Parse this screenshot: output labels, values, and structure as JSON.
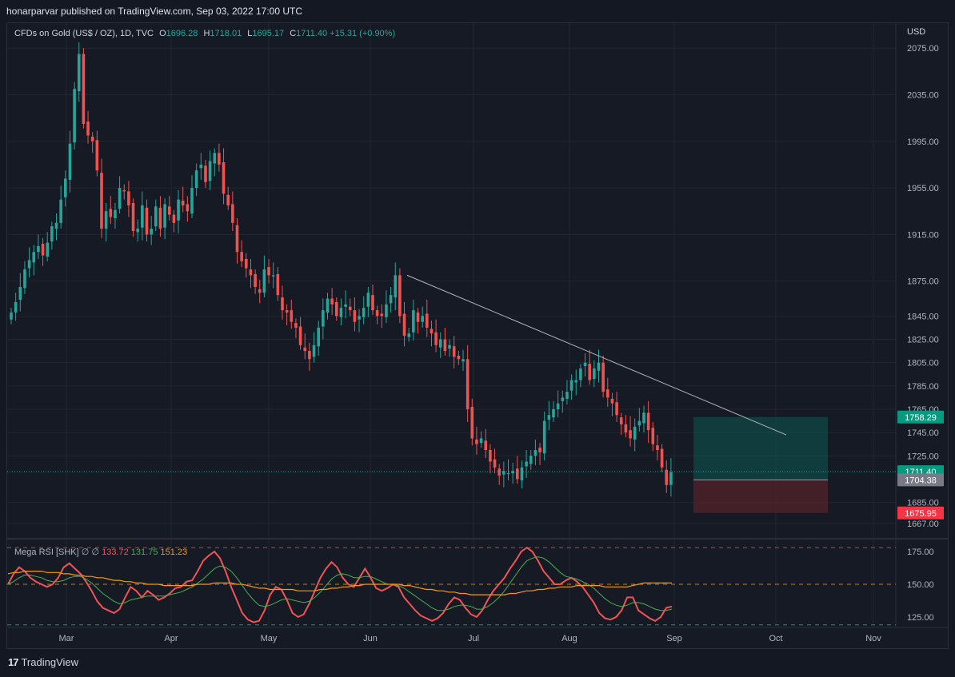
{
  "header": {
    "published": "honarparvar published on TradingView.com, Sep 03, 2022 17:00 UTC"
  },
  "symbol": {
    "name": "CFDs on Gold (US$ / OZ), 1D, TVC",
    "o_label": "O",
    "o": "1696.28",
    "h_label": "H",
    "h": "1718.01",
    "l_label": "L",
    "l": "1695.17",
    "c_label": "C",
    "c": "1711.40",
    "change": "+15.31 (+0.90%)"
  },
  "currency": "USD",
  "rsi_legend": {
    "name": "Mega RSI [SHK]",
    "v1": "133.72",
    "v2": "131.75",
    "v3": "151.23"
  },
  "footer": {
    "brand": "TradingView",
    "logo": "17"
  },
  "colors": {
    "up": "#26a69a",
    "down": "#ef5350",
    "rsi": "#f05454",
    "rsi_signal": "#4caf50",
    "rsi_ma": "#ff9800"
  },
  "chart_data": [
    {
      "type": "candlestick",
      "x_tick_labels": [
        "Mar",
        "Apr",
        "May",
        "Jun",
        "Jul",
        "Aug",
        "Sep",
        "Oct",
        "Nov"
      ],
      "y_tick_labels": [
        "2075.00",
        "2035.00",
        "1995.00",
        "1955.00",
        "1915.00",
        "1875.00",
        "1845.00",
        "1825.00",
        "1805.00",
        "1785.00",
        "1765.00",
        "1745.00",
        "1725.00",
        "1685.00",
        "1667.00"
      ],
      "ylim": [
        1660,
        2082
      ],
      "price_badges": [
        {
          "label": "1758.29",
          "color": "#089981"
        },
        {
          "label": "1711.40",
          "color": "#089981"
        },
        {
          "label": "1704.38",
          "color": "#787b86"
        },
        {
          "label": "1675.95",
          "color": "#f23645"
        }
      ],
      "position_box": {
        "entry": 1704.38,
        "target": 1758.29,
        "stop": 1675.95
      },
      "trendline": {
        "from": [
          "Jun 10",
          1880
        ],
        "to": [
          "Sep 24",
          1743
        ]
      },
      "closes": [
        1848,
        1857,
        1870,
        1885,
        1893,
        1900,
        1905,
        1897,
        1908,
        1922,
        1925,
        1945,
        1963,
        1993,
        2040,
        2070,
        2010,
        2000,
        1995,
        1970,
        1920,
        1935,
        1930,
        1936,
        1955,
        1952,
        1940,
        1918,
        1920,
        1940,
        1915,
        1920,
        1939,
        1920,
        1941,
        1932,
        1925,
        1945,
        1940,
        1935,
        1955,
        1970,
        1975,
        1960,
        1978,
        1985,
        1975,
        1950,
        1940,
        1925,
        1900,
        1892,
        1886,
        1880,
        1870,
        1865,
        1885,
        1880,
        1880,
        1863,
        1850,
        1848,
        1840,
        1835,
        1820,
        1815,
        1808,
        1820,
        1835,
        1850,
        1860,
        1855,
        1845,
        1852,
        1855,
        1850,
        1840,
        1845,
        1852,
        1865,
        1850,
        1845,
        1845,
        1855,
        1863,
        1880,
        1845,
        1828,
        1830,
        1850,
        1840,
        1845,
        1835,
        1830,
        1820,
        1825,
        1815,
        1820,
        1810,
        1808,
        1808,
        1765,
        1740,
        1735,
        1740,
        1730,
        1720,
        1715,
        1708,
        1712,
        1710,
        1712,
        1705,
        1715,
        1720,
        1725,
        1730,
        1728,
        1755,
        1760,
        1765,
        1770,
        1775,
        1780,
        1790,
        1790,
        1800,
        1805,
        1790,
        1800,
        1805,
        1780,
        1775,
        1770,
        1760,
        1752,
        1745,
        1740,
        1750,
        1755,
        1762,
        1747,
        1735,
        1730,
        1715,
        1700,
        1711
      ],
      "values_note": "close prices read from the chart"
    },
    {
      "type": "line",
      "title": "Mega RSI [SHK]",
      "y_tick_labels": [
        "175.00",
        "150.00",
        "125.00"
      ],
      "ylim": [
        117,
        183
      ],
      "hlines": [
        178,
        150,
        119
      ],
      "series": [
        {
          "name": "133.72",
          "values": [
            150,
            158,
            163,
            160,
            155,
            152,
            150,
            148,
            150,
            155,
            163,
            166,
            162,
            158,
            152,
            145,
            137,
            132,
            130,
            128,
            131,
            140,
            148,
            145,
            140,
            145,
            142,
            138,
            140,
            143,
            147,
            148,
            152,
            153,
            160,
            168,
            172,
            175,
            170,
            160,
            148,
            138,
            128,
            123,
            121,
            122,
            130,
            142,
            148,
            146,
            138,
            128,
            125,
            127,
            135,
            145,
            155,
            162,
            167,
            163,
            155,
            150,
            148,
            155,
            162,
            155,
            147,
            145,
            147,
            150,
            148,
            140,
            135,
            130,
            126,
            124,
            122,
            124,
            128,
            135,
            140,
            138,
            132,
            127,
            125,
            130,
            138,
            145,
            150,
            155,
            162,
            168,
            175,
            178,
            175,
            168,
            160,
            155,
            150,
            150,
            153,
            155,
            152,
            148,
            142,
            136,
            128,
            124,
            123,
            125,
            130,
            140,
            140,
            130,
            127,
            124,
            122,
            125,
            132,
            133
          ]
        },
        {
          "name": "131.75",
          "values": [
            150,
            152,
            155,
            157,
            157,
            156,
            155,
            153,
            152,
            152,
            153,
            155,
            156,
            156,
            154,
            151,
            147,
            143,
            140,
            137,
            135,
            136,
            138,
            139,
            140,
            141,
            141,
            141,
            141,
            142,
            143,
            144,
            146,
            148,
            151,
            154,
            158,
            162,
            164,
            163,
            160,
            155,
            149,
            143,
            138,
            134,
            133,
            134,
            136,
            138,
            139,
            138,
            137,
            136,
            137,
            140,
            144,
            149,
            154,
            157,
            158,
            157,
            155,
            155,
            156,
            156,
            154,
            152,
            150,
            150,
            149,
            147,
            144,
            141,
            138,
            135,
            132,
            130,
            130,
            131,
            133,
            134,
            134,
            133,
            131,
            131,
            133,
            136,
            140,
            145,
            151,
            157,
            163,
            168,
            170,
            171,
            170,
            167,
            163,
            159,
            156,
            155,
            154,
            152,
            150,
            147,
            143,
            139,
            136,
            134,
            133,
            134,
            136,
            136,
            135,
            133,
            131,
            130,
            130,
            131
          ]
        },
        {
          "name": "151.23",
          "values": [
            158,
            159,
            159,
            160,
            160,
            160,
            160,
            159,
            159,
            159,
            158,
            158,
            157,
            157,
            156,
            156,
            155,
            155,
            154,
            153,
            153,
            152,
            152,
            151,
            151,
            150,
            150,
            150,
            149,
            149,
            149,
            149,
            149,
            149,
            150,
            150,
            150,
            151,
            151,
            151,
            151,
            150,
            150,
            149,
            148,
            147,
            147,
            146,
            146,
            146,
            146,
            146,
            145,
            145,
            145,
            145,
            146,
            146,
            147,
            147,
            148,
            148,
            149,
            149,
            150,
            150,
            150,
            150,
            150,
            150,
            150,
            149,
            149,
            148,
            147,
            146,
            146,
            145,
            145,
            144,
            144,
            143,
            143,
            142,
            142,
            142,
            142,
            142,
            142,
            142,
            143,
            143,
            144,
            145,
            145,
            146,
            146,
            147,
            147,
            148,
            148,
            148,
            149,
            149,
            149,
            149,
            149,
            148,
            148,
            148,
            148,
            148,
            149,
            150,
            151,
            151,
            151,
            151,
            151,
            151
          ]
        }
      ]
    }
  ]
}
